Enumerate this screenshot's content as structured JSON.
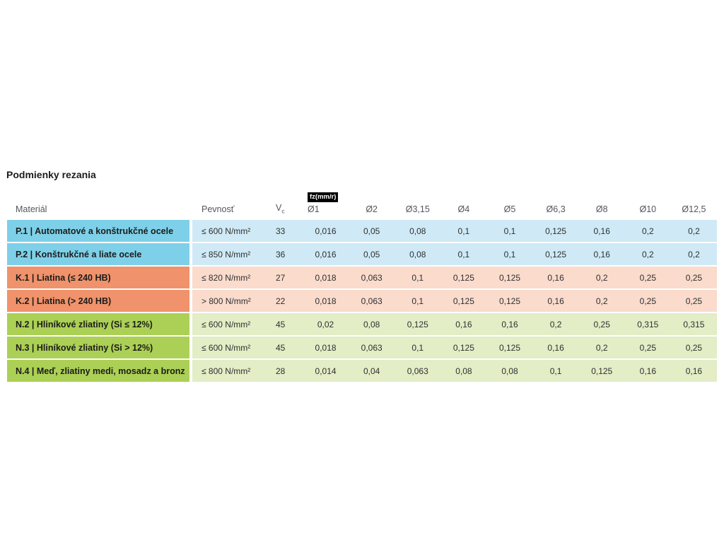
{
  "chart_data": {
    "type": "table",
    "title": "Podmienky rezania",
    "unit_badge": "fz(mm/r)",
    "column_headers": {
      "material": "Materiál",
      "strength": "Pevnosť",
      "vc": "V",
      "vc_subscript": "c",
      "diameters": [
        "Ø1",
        "Ø2",
        "Ø3,15",
        "Ø4",
        "Ø5",
        "Ø6,3",
        "Ø8",
        "Ø10",
        "Ø12,5"
      ]
    },
    "rows": [
      {
        "group": "P",
        "material": "P.1 | Automatové a konštrukčné ocele",
        "strength": "≤ 600 N/mm²",
        "vc": "33",
        "fz": [
          "0,016",
          "0,05",
          "0,08",
          "0,1",
          "0,1",
          "0,125",
          "0,16",
          "0,2",
          "0,2"
        ]
      },
      {
        "group": "P",
        "material": "P.2 | Konštrukčné a liate ocele",
        "strength": "≤ 850 N/mm²",
        "vc": "36",
        "fz": [
          "0,016",
          "0,05",
          "0,08",
          "0,1",
          "0,1",
          "0,125",
          "0,16",
          "0,2",
          "0,2"
        ]
      },
      {
        "group": "K",
        "material": "K.1 | Liatina (≤ 240 HB)",
        "strength": "≤ 820 N/mm²",
        "vc": "27",
        "fz": [
          "0,018",
          "0,063",
          "0,1",
          "0,125",
          "0,125",
          "0,16",
          "0,2",
          "0,25",
          "0,25"
        ]
      },
      {
        "group": "K",
        "material": "K.2 | Liatina (> 240 HB)",
        "strength": "> 800 N/mm²",
        "vc": "22",
        "fz": [
          "0,018",
          "0,063",
          "0,1",
          "0,125",
          "0,125",
          "0,16",
          "0,2",
          "0,25",
          "0,25"
        ]
      },
      {
        "group": "N",
        "material": "N.2 | Hliníkové zliatiny (Si ≤ 12%)",
        "strength": "≤ 600 N/mm²",
        "vc": "45",
        "fz": [
          "0,02",
          "0,08",
          "0,125",
          "0,16",
          "0,16",
          "0,2",
          "0,25",
          "0,315",
          "0,315"
        ]
      },
      {
        "group": "N",
        "material": "N.3 | Hliníkové zliatiny (Si > 12%)",
        "strength": "≤ 600 N/mm²",
        "vc": "45",
        "fz": [
          "0,018",
          "0,063",
          "0,1",
          "0,125",
          "0,125",
          "0,16",
          "0,2",
          "0,25",
          "0,25"
        ]
      },
      {
        "group": "N",
        "material": "N.4 | Meď, zliatiny medi, mosadz a bronz",
        "strength": "≤ 800 N/mm²",
        "vc": "28",
        "fz": [
          "0,014",
          "0,04",
          "0,063",
          "0,08",
          "0,08",
          "0,1",
          "0,125",
          "0,16",
          "0,16"
        ]
      }
    ],
    "row_group_colors": {
      "P": {
        "label_bg": "#7ed0e9",
        "value_bg": "#cfeaf6"
      },
      "K": {
        "label_bg": "#f0926b",
        "value_bg": "#fadbcc"
      },
      "N": {
        "label_bg": "#abd055",
        "value_bg": "#e3edc6"
      }
    },
    "text_colors": {
      "title": "#1c1c1a",
      "header": "#54565a",
      "badge_bg": "#000000",
      "badge_text": "#ffffff"
    }
  }
}
